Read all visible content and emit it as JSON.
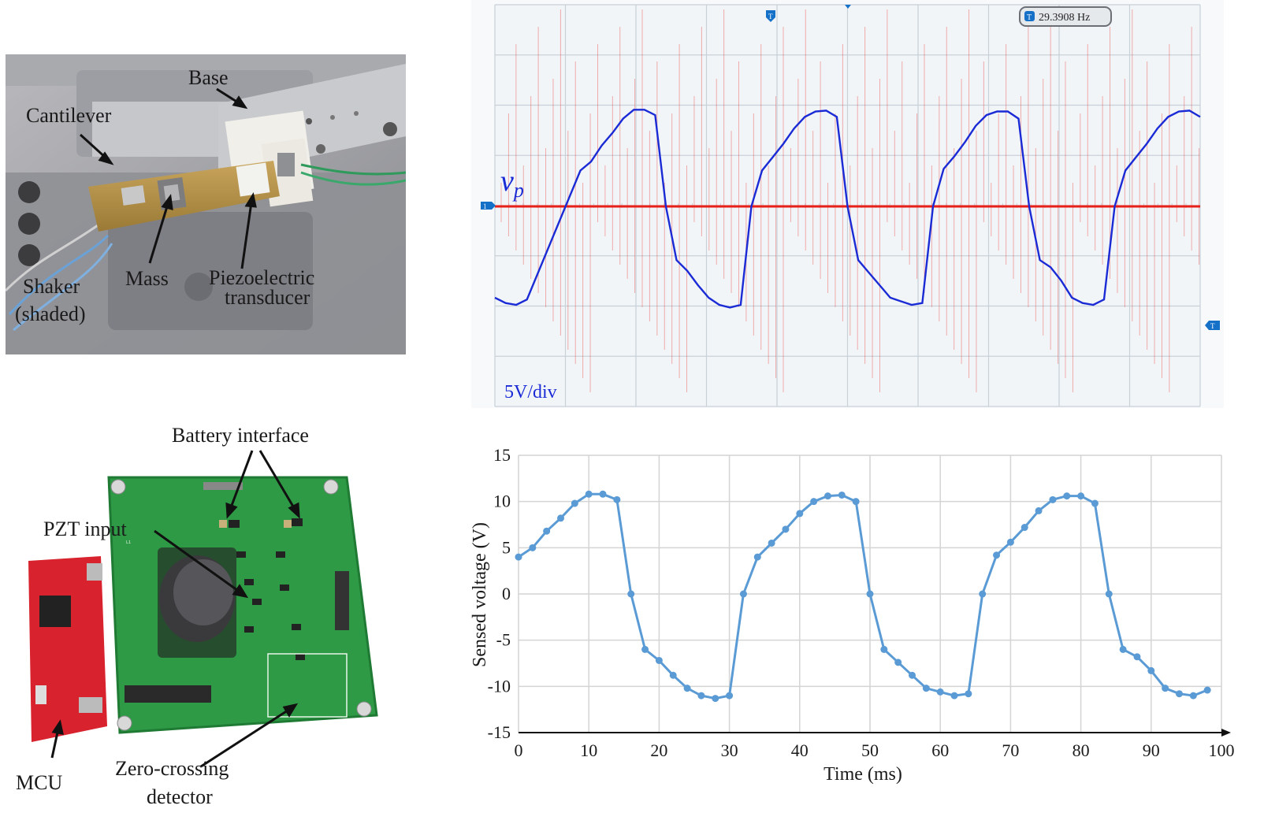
{
  "photo_top": {
    "labels": {
      "base": "Base",
      "cantilever": "Cantilever",
      "shaker_1": "Shaker",
      "shaker_2": "(shaded)",
      "mass": "Mass",
      "piezo_1": "Piezoelectric",
      "piezo_2": "transducer"
    }
  },
  "photo_bottom": {
    "labels": {
      "battery": "Battery interface",
      "pzt": "PZT input",
      "mcu": "MCU",
      "zcd_1": "Zero-crossing",
      "zcd_2": "detector"
    }
  },
  "scope": {
    "frequency_readout": "29.3908 Hz",
    "trigger_marker": "T",
    "channel_marker": "1",
    "signal_label": "v",
    "signal_subscript": "p",
    "scale_label": "5V/div",
    "colors": {
      "background": "#f2f5f8",
      "grid": "#c8d0d8",
      "trace_blue": "#1a2bd6",
      "trace_red": "#e8201a"
    }
  },
  "chart_data": {
    "type": "line",
    "title": "",
    "xlabel": "Time (ms)",
    "ylabel": "Sensed voltage (V)",
    "xlim": [
      0,
      100
    ],
    "ylim": [
      -15,
      15
    ],
    "xticks": [
      0,
      10,
      20,
      30,
      40,
      50,
      60,
      70,
      80,
      90,
      100
    ],
    "yticks": [
      15,
      10,
      5,
      0,
      -5,
      -10,
      -15
    ],
    "grid": true,
    "line_color": "#5b9bd5",
    "series": [
      {
        "x": [
          0,
          2,
          4,
          6,
          8,
          10,
          12,
          14,
          16,
          18,
          20,
          22,
          24,
          26,
          28,
          30,
          32,
          34,
          36,
          38,
          40,
          42,
          44,
          46,
          48,
          50,
          52,
          54,
          56,
          58,
          60,
          62,
          64,
          66,
          68,
          70,
          72,
          74,
          76,
          78,
          80,
          82,
          84,
          86,
          88,
          90,
          92,
          94,
          96,
          98
        ],
        "y": [
          4,
          5,
          6.8,
          8.2,
          9.8,
          10.8,
          10.8,
          10.2,
          0,
          -6,
          -7.2,
          -8.8,
          -10.2,
          -11,
          -11.3,
          -11,
          0,
          4,
          5.5,
          7,
          8.7,
          10,
          10.6,
          10.7,
          10,
          0,
          -6,
          -7.4,
          -8.8,
          -10.2,
          -10.6,
          -11,
          -10.8,
          0,
          4.2,
          5.6,
          7.2,
          9,
          10.2,
          10.6,
          10.6,
          9.8,
          0,
          -6,
          -6.8,
          -8.3,
          -10.2,
          -10.8,
          -11,
          -10.4
        ]
      }
    ]
  }
}
